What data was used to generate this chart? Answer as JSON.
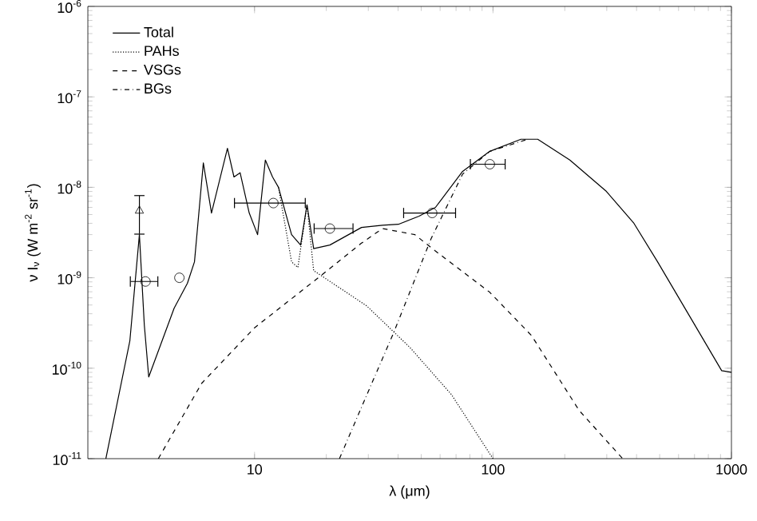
{
  "chart_data": {
    "type": "line",
    "xlabel": "λ (μm)",
    "ylabel": "ν I$_{ν}$ (W m$^{-2}$ sr$^{-1}$)",
    "log": "xy",
    "xlim": [
      2,
      1000
    ],
    "ylim": [
      1e-11,
      1e-06
    ],
    "xticks": [
      10,
      100,
      1000
    ],
    "yticks": [
      {
        "value": 1e-11,
        "label": "10$^{-11}$"
      },
      {
        "value": 1e-10,
        "label": "10$^{-10}$"
      },
      {
        "value": 1e-09,
        "label": "10$^{-9}$"
      },
      {
        "value": 1e-08,
        "label": "10$^{-8}$"
      },
      {
        "value": 1e-07,
        "label": "10$^{-7}$"
      },
      {
        "value": 1e-06,
        "label": "10$^{-6}$"
      }
    ],
    "legend": "top left",
    "series": [
      {
        "name": "Total",
        "color": "#000000",
        "line_style": "solid",
        "x": [
          2.38,
          3.0,
          3.29,
          3.45,
          3.6,
          4.6,
          5.23,
          5.6,
          6.1,
          6.6,
          7.7,
          8.2,
          8.7,
          9.5,
          10.3,
          11.1,
          11.9,
          12.6,
          14.3,
          15.6,
          16.6,
          17.7,
          20.7,
          28.1,
          34.4,
          40.1,
          49,
          57.4,
          74.6,
          97,
          131,
          154,
          210,
          299,
          390,
          490,
          683,
          910,
          1000
        ],
        "values": [
          1e-11,
          2e-10,
          3e-09,
          3e-10,
          8e-11,
          4.6e-10,
          8.7e-10,
          1.5e-09,
          1.86e-08,
          5.2e-09,
          2.7e-08,
          1.3e-08,
          1.45e-08,
          5.2e-09,
          3e-09,
          2e-08,
          1.3e-08,
          1e-08,
          3e-09,
          2.3e-09,
          6.4e-09,
          2.1e-09,
          2.3e-09,
          3.6e-09,
          3.8e-09,
          3.9e-09,
          4.8e-09,
          6e-09,
          1.5e-08,
          2.5e-08,
          3.4e-08,
          3.4e-08,
          2e-08,
          9e-09,
          4e-09,
          1.5e-09,
          3.4e-10,
          9.4e-11,
          9e-11
        ]
      },
      {
        "name": "PAHs",
        "color": "#000000",
        "line_style": "dotted",
        "x": [
          12.6,
          14.3,
          15.2,
          16.6,
          17.7,
          29.5,
          44.8,
          67,
          100
        ],
        "values": [
          1e-08,
          1.5e-09,
          1.3e-09,
          6.4e-09,
          1.2e-09,
          4.9e-10,
          1.7e-10,
          5.1e-11,
          1e-11
        ]
      },
      {
        "name": "VSGs",
        "color": "#000000",
        "line_style": "dashed",
        "x": [
          3.95,
          6.0,
          10,
          18.5,
          28,
          34.4,
          47,
          57,
          97,
          145,
          230,
          350
        ],
        "values": [
          1e-11,
          6.8e-11,
          2.8e-10,
          1e-09,
          2.4e-09,
          3.5e-09,
          3e-09,
          2e-09,
          6.9e-10,
          2.3e-10,
          3.4e-11,
          1e-11
        ]
      },
      {
        "name": "BGs",
        "color": "#000000",
        "line_style": "dashdot",
        "x": [
          22.7,
          29.5,
          38.4,
          55,
          74.6,
          97,
          140
        ],
        "values": [
          1e-11,
          5e-11,
          2.5e-10,
          2.7e-09,
          1.4e-08,
          2.5e-08,
          3.4e-08
        ]
      },
      {
        "type": "scatter",
        "marker": "circle",
        "color": "#000000",
        "x": [
          3.49,
          4.84,
          12.0,
          20.7,
          55.6,
          97
        ],
        "values": [
          9.1e-10,
          1e-09,
          6.7e-09,
          3.5e-09,
          5.2e-09,
          1.8e-08
        ],
        "xerrors": [
          [
            3.0,
            3.95
          ],
          null,
          [
            8.2,
            16.4
          ],
          [
            17.7,
            26
          ],
          [
            42,
            70
          ],
          [
            80,
            113
          ]
        ]
      },
      {
        "type": "scatter",
        "marker": "triangle",
        "color": "#000000",
        "x": [
          3.29
        ],
        "values": [
          5.5e-09
        ],
        "errors": [
          [
            3e-09,
            8.2e-09
          ]
        ]
      }
    ]
  }
}
